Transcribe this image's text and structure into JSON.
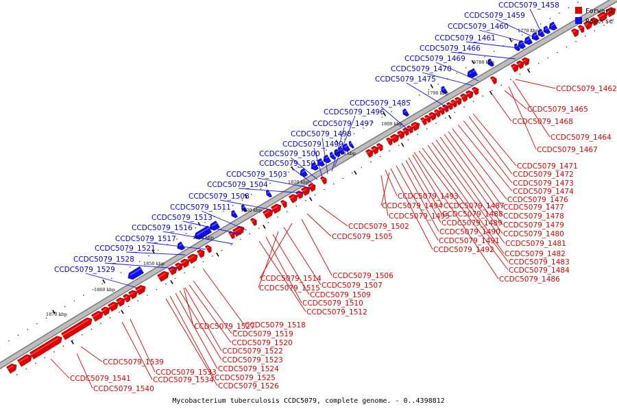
{
  "caption": "Mycobacterium tuberculosis CCDC5079, complete genome. - 0..4398812",
  "colors": {
    "forward": "#e00000",
    "reverse": "#1010ee",
    "backbone": "#bdbdbd"
  },
  "legend": [
    {
      "label": "Forward",
      "color": "#e00000"
    },
    {
      "label": "Reverse",
      "color": "#1010ee"
    }
  ],
  "ticks": [
    {
      "label": "1770 kbp"
    },
    {
      "label": "1780 kbp"
    },
    {
      "label": "1790 kbp"
    },
    {
      "label": "1800 kbp"
    },
    {
      "label": "1810 kbp"
    },
    {
      "label": "1820 kbp"
    },
    {
      "label": "1830 kbp"
    },
    {
      "label": "1840 kbp"
    },
    {
      "label": "1850 kbp"
    },
    {
      "label": "1860 kbp"
    },
    {
      "label": "1870 kbp"
    }
  ],
  "reverse_labels": [
    "CCDC5079_1458",
    "CCDC5079_1459",
    "CCDC5079_1460",
    "CCDC5079_1461",
    "CCDC5079_1466",
    "CCDC5079_1469",
    "CCDC5079_1470",
    "CCDC5079_1475",
    "CCDC5079_1485",
    "CCDC5079_1496",
    "CCDC5079_1497",
    "CCDC5079_1498",
    "CCDC5079_1499",
    "CCDC5079_1500",
    "CCDC5079_1501",
    "CCDC5079_1503",
    "CCDC5079_1504",
    "CCDC5079_1508",
    "CCDC5079_1511",
    "CCDC5079_1513",
    "CCDC5079_1516",
    "CCDC5079_1517",
    "CCDC5079_1521",
    "CCDC5079_1528",
    "CCDC5079_1529"
  ],
  "forward_labels": [
    "CCDC5079_1462",
    "CCDC5079_1465",
    "CCDC5079_1468",
    "CCDC5079_1464",
    "CCDC5079_1467",
    "CCDC5079_1471",
    "CCDC5079_1472",
    "CCDC5079_1473",
    "CCDC5079_1474",
    "CCDC5079_1476",
    "CCDC5079_1477",
    "CCDC5079_1478",
    "CCDC5079_1479",
    "CCDC5079_1480",
    "CCDC5079_1481",
    "CCDC5079_1482",
    "CCDC5079_1483",
    "CCDC5079_1484",
    "CCDC5079_1486",
    "CCDC5079_1493",
    "CCDC5079_1494",
    "CCDC5079_1487",
    "CCDC5079_1495",
    "CCDC5079_1488",
    "CCDC5079_1489",
    "CCDC5079_1490",
    "CCDC5079_1491",
    "CCDC5079_1492",
    "CCDC5079_1502",
    "CCDC5079_1505",
    "CCDC5079_1506",
    "CCDC5079_1514",
    "CCDC5079_1507",
    "CCDC5079_1515",
    "CCDC5079_1509",
    "CCDC5079_1510",
    "CCDC5079_1512",
    "CCDC5079_1518",
    "CCDC5079_1527",
    "CCDC5079_1519",
    "CCDC5079_1520",
    "CCDC5079_1522",
    "CCDC5079_1523",
    "CCDC5079_1524",
    "CCDC5079_1525",
    "CCDC5079_1526",
    "CCDC5079_1539",
    "CCDC5079_1533",
    "CCDC5079_1534",
    "CCDC5079_1541",
    "CCDC5079_1540"
  ]
}
